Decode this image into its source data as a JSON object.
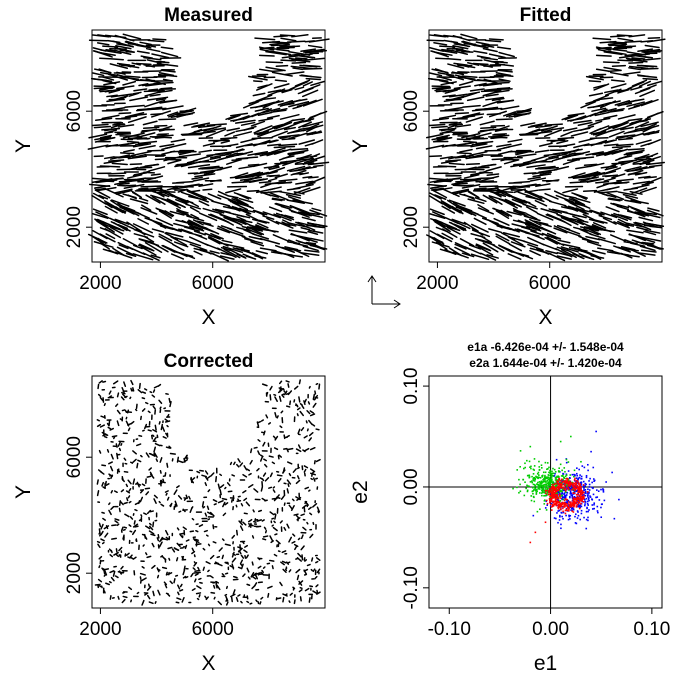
{
  "chart_data": [
    {
      "type": "scatter",
      "panel": "top-left",
      "title": "Measured",
      "xlabel": "X",
      "ylabel": "Y",
      "xlim": [
        1700,
        10000
      ],
      "ylim": [
        800,
        8800
      ],
      "xticks": [
        2000,
        6000
      ],
      "yticks": [
        2000,
        6000
      ],
      "glyph": "whisker",
      "whisker_field": {
        "n": 980,
        "mean_length": 520,
        "length_spread": 0.45,
        "orientation_bands": [
          {
            "y_max": 3200,
            "angle_deg": -20
          },
          {
            "y_max": 5200,
            "angle_deg": 8
          },
          {
            "y_max": 7000,
            "angle_deg": 12
          },
          {
            "y_max": 8800,
            "angle_deg": -5
          }
        ]
      },
      "empty_region": {
        "x": [
          4500,
          7600
        ],
        "y_min": 6500
      }
    },
    {
      "type": "scatter",
      "panel": "top-right",
      "title": "Fitted",
      "xlabel": "X",
      "ylabel": "Y",
      "xlim": [
        1700,
        10000
      ],
      "ylim": [
        800,
        8800
      ],
      "xticks": [
        2000,
        6000
      ],
      "yticks": [
        2000,
        6000
      ],
      "glyph": "whisker",
      "whisker_field": {
        "n": 980,
        "mean_length": 520,
        "length_spread": 0.25,
        "orientation_bands": [
          {
            "y_max": 3200,
            "angle_deg": -20
          },
          {
            "y_max": 5200,
            "angle_deg": 8
          },
          {
            "y_max": 7000,
            "angle_deg": 12
          },
          {
            "y_max": 8800,
            "angle_deg": -5
          }
        ]
      },
      "empty_region": {
        "x": [
          4500,
          7600
        ],
        "y_min": 6500
      }
    },
    {
      "type": "scatter",
      "panel": "bottom-left",
      "title": "Corrected",
      "xlabel": "X",
      "ylabel": "Y",
      "xlim": [
        1700,
        10000
      ],
      "ylim": [
        800,
        8800
      ],
      "xticks": [
        2000,
        6000
      ],
      "yticks": [
        2000,
        6000
      ],
      "glyph": "whisker",
      "whisker_field": {
        "n": 980,
        "mean_length": 110,
        "length_spread": 0.6,
        "orientation_bands": [
          {
            "y_max": 8800,
            "angle_deg": "random"
          }
        ]
      },
      "empty_region": {
        "x": [
          4500,
          7600
        ],
        "y_min": 6500
      }
    },
    {
      "type": "scatter",
      "panel": "bottom-right",
      "title": "",
      "subtitle_lines": [
        "e1a -6.426e-04 +/- 1.548e-04",
        "e2a 1.644e-04 +/- 1.420e-04"
      ],
      "xlabel": "e1",
      "ylabel": "e2",
      "xlim": [
        -0.12,
        0.11
      ],
      "ylim": [
        -0.12,
        0.11
      ],
      "xticks": [
        -0.1,
        0.0,
        0.1
      ],
      "xtick_labels": [
        "-0.10",
        "0.00",
        "0.10"
      ],
      "yticks": [
        -0.1,
        0.0,
        0.1
      ],
      "ytick_labels": [
        "-0.10",
        "0.00",
        "0.10"
      ],
      "reference_lines": {
        "x": 0,
        "y": 0
      },
      "clusters": [
        {
          "color": "#0000ff",
          "n": 420,
          "center": [
            0.022,
            -0.008
          ],
          "spread": [
            0.013,
            0.012
          ]
        },
        {
          "color": "#00cc00",
          "n": 380,
          "center": [
            -0.004,
            0.004
          ],
          "spread": [
            0.011,
            0.009
          ]
        },
        {
          "color": "#ff0000",
          "n": 420,
          "ring_center": [
            0.016,
            -0.008
          ],
          "ring_radius": [
            0.014,
            0.011
          ]
        }
      ],
      "outliers": [
        {
          "color": "#00cc00",
          "points": [
            [
              -0.02,
              0.04
            ],
            [
              0.02,
              0.05
            ],
            [
              0.03,
              0.025
            ],
            [
              -0.03,
              0.02
            ],
            [
              0.01,
              0.045
            ]
          ]
        },
        {
          "color": "#0000ff",
          "points": [
            [
              0.045,
              0.055
            ],
            [
              0.04,
              0.035
            ],
            [
              0.05,
              -0.03
            ]
          ]
        },
        {
          "color": "#ff0000",
          "points": [
            [
              -0.02,
              -0.055
            ],
            [
              -0.015,
              -0.045
            ],
            [
              -0.005,
              -0.035
            ]
          ]
        }
      ]
    }
  ]
}
